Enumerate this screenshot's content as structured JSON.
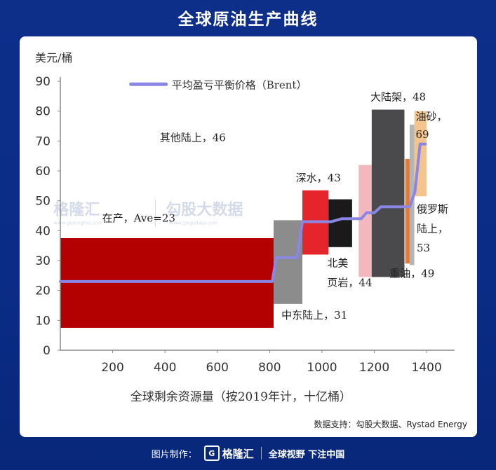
{
  "page_title": "全球原油生产曲线",
  "source": "数据支持：勾股大数据、Rystad Energy",
  "watermark": {
    "brand1": "格隆汇",
    "brand1_sub": "www.gelonghui.com",
    "brand2": "勾股大数据",
    "brand2_sub": "www.gogudata.com"
  },
  "footer": {
    "made_by": "图片制作：",
    "logo_text": "格隆汇",
    "slogan": "全球视野 下注中国"
  },
  "colors": {
    "background": "#0a2c86",
    "onshore_other": "#b30000",
    "middle_east": "#8c8c8c",
    "deepwater": "#e5252b",
    "shale": "#1a1a1a",
    "pink": "#f2b8bd",
    "offshore_shelf": "#4a4a4d",
    "russia": "#e07b39",
    "heavy_oil": "#b5b5b5",
    "oil_sands": "#f5c48c",
    "breakeven_line": "#8a86e6"
  },
  "chart_data": {
    "type": "bar",
    "ylabel": "美元/桶",
    "xlabel": "全球剩余资源量（按2019年计，十亿桶）",
    "ylim": [
      0,
      90
    ],
    "xlim": [
      0,
      1480
    ],
    "y_ticks": [
      "0",
      "10",
      "20",
      "30",
      "40",
      "50",
      "60",
      "70",
      "80",
      "90"
    ],
    "x_ticks": [
      "200",
      "400",
      "600",
      "800",
      "1000",
      "1200",
      "1400"
    ],
    "x_tick_values": [
      200,
      400,
      600,
      800,
      1000,
      1200,
      1400
    ],
    "legend": [
      "平均盈亏平衡价格（Brent）"
    ],
    "segments": [
      {
        "x0": 0,
        "x1": 815,
        "y0": 7.5,
        "y1": 37.5,
        "color_key": "onshore_other"
      },
      {
        "x0": 815,
        "x1": 925,
        "y0": 15.5,
        "y1": 43.5,
        "color_key": "middle_east"
      },
      {
        "x0": 925,
        "x1": 1025,
        "y0": 32,
        "y1": 53.5,
        "color_key": "deepwater"
      },
      {
        "x0": 1025,
        "x1": 1115,
        "y0": 34.5,
        "y1": 50.5,
        "color_key": "shale"
      },
      {
        "x0": 1140,
        "x1": 1190,
        "y0": 24.5,
        "y1": 62,
        "color_key": "pink"
      },
      {
        "x0": 1190,
        "x1": 1315,
        "y0": 24.5,
        "y1": 80.5,
        "color_key": "offshore_shelf"
      },
      {
        "x0": 1318,
        "x1": 1335,
        "y0": 29,
        "y1": 64,
        "color_key": "russia"
      },
      {
        "x0": 1335,
        "x1": 1353,
        "y0": 28.5,
        "y1": 75.5,
        "color_key": "heavy_oil"
      },
      {
        "x0": 1353,
        "x1": 1400,
        "y0": 51.5,
        "y1": 80,
        "color_key": "oil_sands"
      }
    ],
    "breakeven_line": {
      "x": [
        0,
        810,
        825,
        905,
        925,
        1035,
        1075,
        1150,
        1170,
        1200,
        1225,
        1335,
        1355,
        1375,
        1395
      ],
      "y": [
        23,
        23,
        31,
        31,
        43,
        43,
        44,
        44,
        46,
        46,
        48,
        48,
        53,
        69,
        69
      ]
    },
    "annotations": [
      {
        "text": "其他陆上，46",
        "x": 380,
        "y": 70
      },
      {
        "text": "在产，Ave=23",
        "x": 160,
        "y": 43
      },
      {
        "text": "中东陆上，31",
        "x": 845,
        "y": 10.5
      },
      {
        "text": "深水，43",
        "x": 900,
        "y": 56.5
      },
      {
        "text": "北美",
        "x": 1020,
        "y": 28
      },
      {
        "text": "页岩，44",
        "x": 1020,
        "y": 21.5
      },
      {
        "text": "大陆架，48",
        "x": 1185,
        "y": 83.5
      },
      {
        "text": "油砂，",
        "x": 1358,
        "y": 77
      },
      {
        "text": "69",
        "x": 1358,
        "y": 71
      },
      {
        "text": "俄罗斯",
        "x": 1362,
        "y": 46
      },
      {
        "text": "陆上，",
        "x": 1362,
        "y": 39.5
      },
      {
        "text": "53",
        "x": 1362,
        "y": 33
      },
      {
        "text": "重油，49",
        "x": 1258,
        "y": 24.5
      }
    ]
  }
}
